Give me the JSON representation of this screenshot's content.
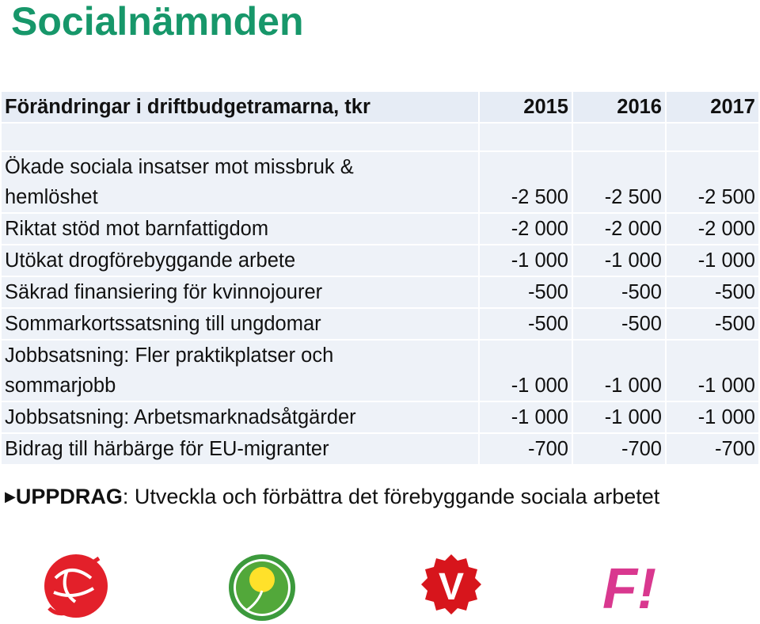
{
  "header": {
    "title": "Socialnämnden"
  },
  "table": {
    "columns": [
      "Förändringar i driftbudgetramarna, tkr",
      "2015",
      "2016",
      "2017"
    ],
    "rows": [
      [
        "Ökade sociala insatser mot missbruk &\nhemlöshet",
        "-2 500",
        "-2 500",
        "-2 500"
      ],
      [
        "Riktat stöd mot barnfattigdom",
        "-2 000",
        "-2 000",
        "-2 000"
      ],
      [
        "Utökat drogförebyggande arbete",
        "-1 000",
        "-1 000",
        "-1 000"
      ],
      [
        "Säkrad finansiering för kvinnojourer",
        "-500",
        "-500",
        "-500"
      ],
      [
        "Sommarkortssatsning till ungdomar",
        "-500",
        "-500",
        "-500"
      ],
      [
        "Jobbsatsning: Fler praktikplatser och\nsommarjobb",
        "-1 000",
        "-1 000",
        "-1 000"
      ],
      [
        "Jobbsatsning: Arbetsmarknadsåtgärder",
        "-1 000",
        "-1 000",
        "-1 000"
      ],
      [
        "Bidrag till härbärge för EU-migranter",
        "-700",
        "-700",
        "-700"
      ]
    ]
  },
  "assignment": {
    "label": "UPPDRAG",
    "text": ": Utveckla och förbättra det förebyggande sociala arbetet"
  },
  "logos": {
    "v": "V",
    "f": "F!"
  }
}
